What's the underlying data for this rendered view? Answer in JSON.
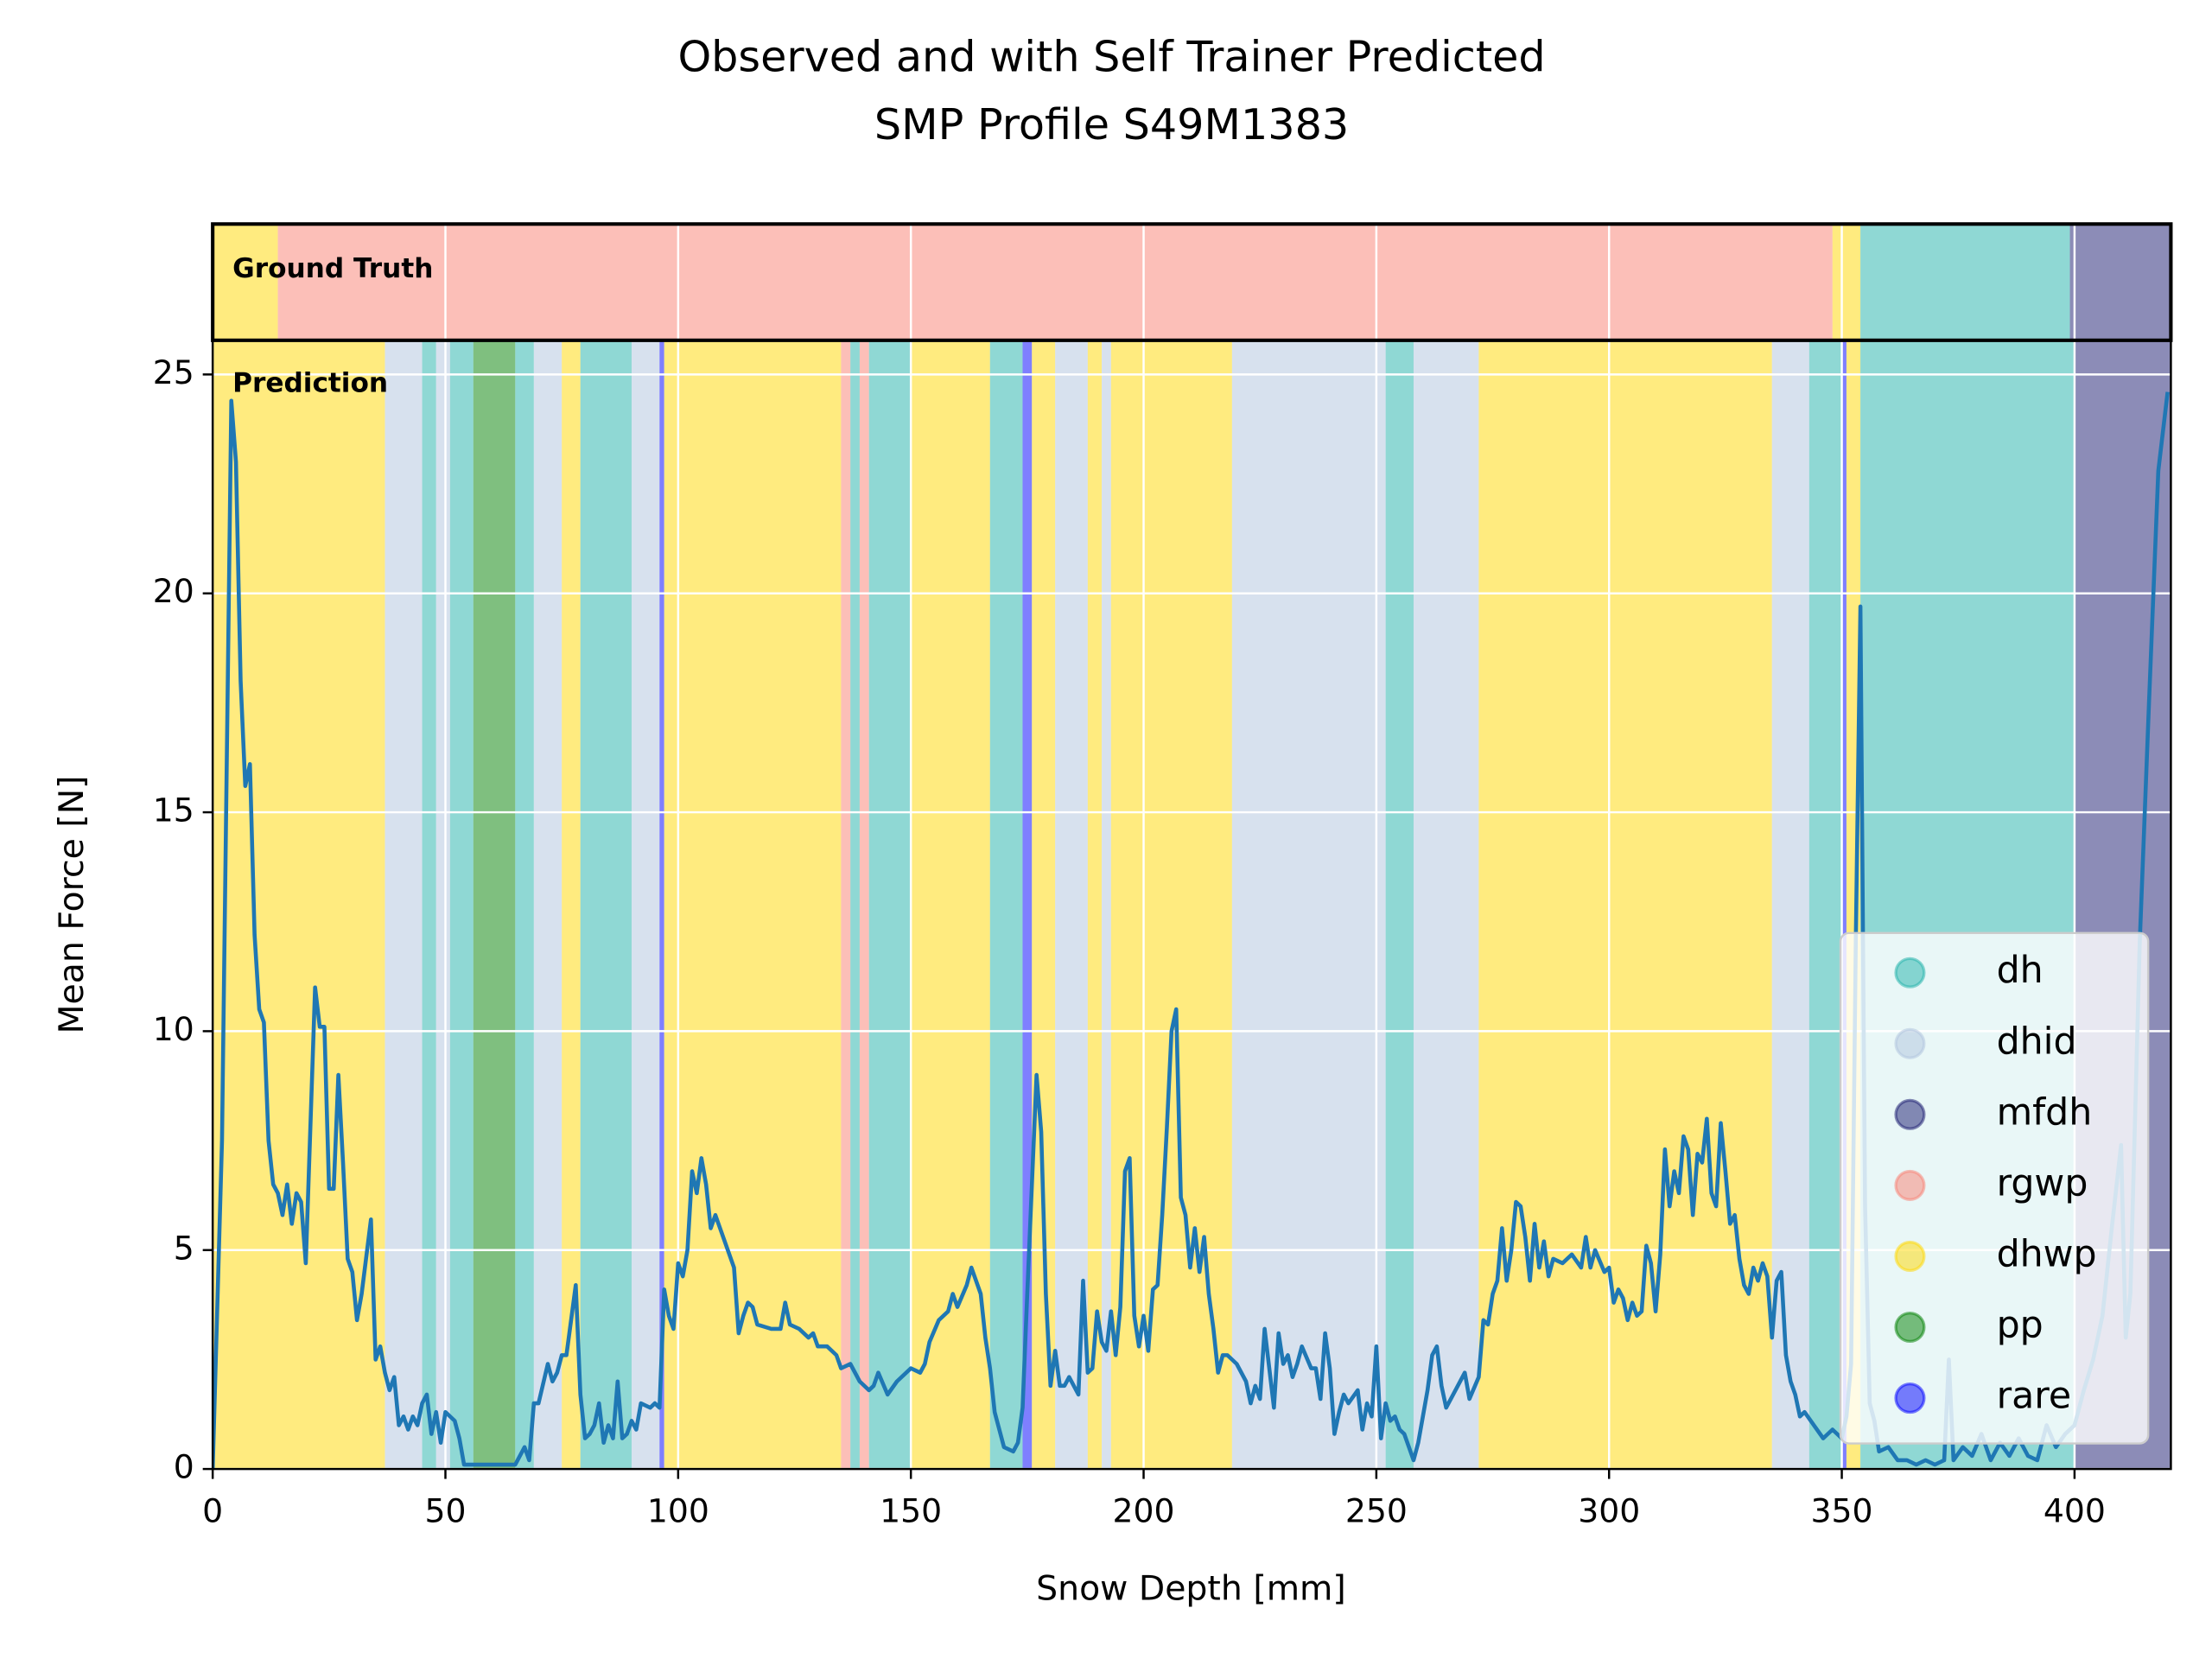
{
  "chart_data": {
    "type": "line",
    "title": [
      "Observed and with Self Trainer Predicted",
      "SMP Profile S49M1383"
    ],
    "x_label": "Snow Depth [mm]",
    "y_label": "Mean Force [N]",
    "xlim": [
      0,
      420.7
    ],
    "ylim": [
      0,
      25.78
    ],
    "xticks": [
      0,
      50,
      100,
      150,
      200,
      250,
      300,
      350,
      400
    ],
    "yticks": [
      0,
      5,
      10,
      15,
      20,
      25
    ],
    "grid": true,
    "legend": "lower right",
    "band_alpha": 0.5,
    "classes": [
      {
        "name": "dh",
        "color": "#20b2aa"
      },
      {
        "name": "dhid",
        "color": "#b0c4de"
      },
      {
        "name": "mfdh",
        "color": "#191970"
      },
      {
        "name": "rgwp",
        "color": "#fa8072"
      },
      {
        "name": "dhwp",
        "color": "#ffd700"
      },
      {
        "name": "pp",
        "color": "#008000"
      },
      {
        "name": "rare",
        "color": "#0000ff"
      }
    ],
    "ground_truth": {
      "label": "Ground Truth",
      "segments": [
        {
          "start": 0,
          "end": 14,
          "class": "dhwp"
        },
        {
          "start": 14,
          "end": 348,
          "class": "rgwp"
        },
        {
          "start": 348,
          "end": 354,
          "class": "dhwp"
        },
        {
          "start": 354,
          "end": 399,
          "class": "dh"
        },
        {
          "start": 399,
          "end": 420.7,
          "class": "mfdh"
        }
      ]
    },
    "prediction": {
      "label": "Prediction",
      "segments": [
        {
          "start": 0,
          "end": 37,
          "class": "dhwp"
        },
        {
          "start": 37,
          "end": 45,
          "class": "dhid"
        },
        {
          "start": 45,
          "end": 48,
          "class": "dh"
        },
        {
          "start": 48,
          "end": 51,
          "class": "dhid"
        },
        {
          "start": 51,
          "end": 56,
          "class": "dh"
        },
        {
          "start": 56,
          "end": 65,
          "class": "pp"
        },
        {
          "start": 65,
          "end": 69,
          "class": "dh"
        },
        {
          "start": 69,
          "end": 75,
          "class": "dhid"
        },
        {
          "start": 75,
          "end": 79,
          "class": "dhwp"
        },
        {
          "start": 79,
          "end": 90,
          "class": "dh"
        },
        {
          "start": 90,
          "end": 96,
          "class": "dhid"
        },
        {
          "start": 96,
          "end": 97,
          "class": "rare"
        },
        {
          "start": 97,
          "end": 135,
          "class": "dhwp"
        },
        {
          "start": 135,
          "end": 137,
          "class": "rgwp"
        },
        {
          "start": 137,
          "end": 139,
          "class": "dh"
        },
        {
          "start": 139,
          "end": 141,
          "class": "rgwp"
        },
        {
          "start": 141,
          "end": 150,
          "class": "dh"
        },
        {
          "start": 150,
          "end": 167,
          "class": "dhwp"
        },
        {
          "start": 167,
          "end": 174,
          "class": "dh"
        },
        {
          "start": 174,
          "end": 176,
          "class": "rare"
        },
        {
          "start": 176,
          "end": 181,
          "class": "dhwp"
        },
        {
          "start": 181,
          "end": 188,
          "class": "dhid"
        },
        {
          "start": 188,
          "end": 191,
          "class": "dhwp"
        },
        {
          "start": 191,
          "end": 193,
          "class": "dhid"
        },
        {
          "start": 193,
          "end": 219,
          "class": "dhwp"
        },
        {
          "start": 219,
          "end": 252,
          "class": "dhid"
        },
        {
          "start": 252,
          "end": 258,
          "class": "dh"
        },
        {
          "start": 258,
          "end": 272,
          "class": "dhid"
        },
        {
          "start": 272,
          "end": 335,
          "class": "dhwp"
        },
        {
          "start": 335,
          "end": 343,
          "class": "dhid"
        },
        {
          "start": 343,
          "end": 350,
          "class": "dh"
        },
        {
          "start": 350,
          "end": 351,
          "class": "rare"
        },
        {
          "start": 351,
          "end": 354,
          "class": "dhwp"
        },
        {
          "start": 354,
          "end": 400,
          "class": "dh"
        },
        {
          "start": 400,
          "end": 420.7,
          "class": "mfdh"
        }
      ]
    },
    "series": [
      {
        "color": "#1f77b4",
        "x": [
          0,
          2,
          4,
          5,
          6,
          7,
          8,
          9,
          10,
          11,
          12,
          13,
          14,
          15,
          16,
          17,
          18,
          19,
          20,
          22,
          23,
          24,
          25,
          26,
          27,
          28,
          29,
          30,
          31,
          32,
          34,
          35,
          36,
          37,
          38,
          39,
          40,
          41,
          42,
          43,
          44,
          45,
          46,
          47,
          48,
          49,
          50,
          52,
          53,
          54,
          56,
          60,
          65,
          67,
          68,
          69,
          70,
          72,
          73,
          74,
          75,
          76,
          78,
          79,
          80,
          81,
          82,
          83,
          84,
          85,
          86,
          87,
          88,
          89,
          90,
          91,
          92,
          94,
          95,
          96,
          97,
          98,
          99,
          100,
          101,
          102,
          103,
          104,
          105,
          106,
          107,
          108,
          110,
          112,
          113,
          114,
          115,
          116,
          117,
          120,
          122,
          123,
          124,
          126,
          128,
          129,
          130,
          132,
          134,
          135,
          137,
          139,
          141,
          142,
          143,
          145,
          147,
          150,
          152,
          153,
          154,
          156,
          158,
          159,
          160,
          162,
          163,
          165,
          166,
          167,
          168,
          170,
          172,
          173,
          174,
          175,
          176,
          177,
          178,
          179,
          180,
          181,
          182,
          183,
          184,
          186,
          187,
          188,
          189,
          190,
          191,
          192,
          193,
          194,
          195,
          196,
          197,
          198,
          199,
          200,
          201,
          202,
          203,
          204,
          205,
          206,
          207,
          208,
          209,
          210,
          211,
          212,
          213,
          214,
          215,
          216,
          217,
          218,
          220,
          221,
          222,
          223,
          224,
          225,
          226,
          227,
          228,
          229,
          230,
          231,
          232,
          233,
          234,
          236,
          237,
          238,
          239,
          240,
          241,
          242,
          243,
          244,
          246,
          247,
          248,
          249,
          250,
          251,
          252,
          253,
          254,
          255,
          256,
          257,
          258,
          259,
          260,
          261,
          262,
          263,
          264,
          265,
          267,
          269,
          270,
          272,
          273,
          274,
          275,
          276,
          277,
          278,
          279,
          280,
          281,
          282,
          283,
          284,
          285,
          286,
          287,
          288,
          290,
          292,
          294,
          295,
          296,
          297,
          299,
          300,
          301,
          302,
          303,
          304,
          305,
          306,
          307,
          308,
          309,
          310,
          311,
          312,
          313,
          314,
          315,
          316,
          317,
          318,
          319,
          320,
          321,
          322,
          323,
          324,
          325,
          326,
          327,
          328,
          329,
          330,
          331,
          332,
          333,
          334,
          335,
          336,
          337,
          338,
          339,
          340,
          341,
          342,
          344,
          346,
          348,
          350,
          351,
          352,
          353,
          354,
          355,
          356,
          357,
          358,
          360,
          362,
          364,
          366,
          368,
          370,
          372,
          373,
          374,
          376,
          378,
          380,
          382,
          384,
          386,
          388,
          390,
          392,
          394,
          396,
          398,
          400,
          402,
          404,
          406,
          408,
          410,
          411,
          412,
          414,
          416,
          418,
          420
        ],
        "values": [
          0,
          7.5,
          24.4,
          23,
          18,
          15.6,
          16.1,
          12.2,
          10.5,
          10.2,
          7.5,
          6.5,
          6.3,
          5.8,
          6.5,
          5.6,
          6.3,
          6.1,
          4.7,
          11,
          10.1,
          10.1,
          6.4,
          6.4,
          9,
          7,
          4.8,
          4.5,
          3.4,
          4,
          5.7,
          2.5,
          2.8,
          2.2,
          1.8,
          2.1,
          1,
          1.2,
          0.9,
          1.2,
          1,
          1.5,
          1.7,
          0.8,
          1.3,
          0.6,
          1.3,
          1.1,
          0.7,
          0.1,
          0.1,
          0.1,
          0.1,
          0.5,
          0.2,
          1.5,
          1.5,
          2.4,
          2,
          2.2,
          2.6,
          2.6,
          4.2,
          1.7,
          0.7,
          0.8,
          1,
          1.5,
          0.6,
          1,
          0.7,
          2,
          0.7,
          0.8,
          1.1,
          0.9,
          1.5,
          1.4,
          1.5,
          1.4,
          4.1,
          3.5,
          3.2,
          4.7,
          4.4,
          5,
          6.8,
          6.3,
          7.1,
          6.5,
          5.5,
          5.8,
          5.2,
          4.6,
          3.1,
          3.5,
          3.8,
          3.7,
          3.3,
          3.2,
          3.2,
          3.8,
          3.3,
          3.2,
          3,
          3.1,
          2.8,
          2.8,
          2.6,
          2.3,
          2.4,
          2,
          1.8,
          1.9,
          2.2,
          1.7,
          2,
          2.3,
          2.2,
          2.4,
          2.9,
          3.4,
          3.6,
          4,
          3.7,
          4.2,
          4.6,
          4,
          3,
          2.3,
          1.3,
          0.5,
          0.4,
          0.6,
          1.4,
          4,
          6.5,
          9,
          7.7,
          4,
          1.9,
          2.7,
          1.9,
          1.9,
          2.1,
          1.7,
          4.3,
          2.2,
          2.3,
          3.6,
          2.9,
          2.7,
          3.6,
          2.6,
          3.7,
          6.8,
          7.1,
          3.5,
          2.8,
          3.5,
          2.7,
          4.1,
          4.2,
          5.8,
          7.8,
          10,
          10.5,
          6.2,
          5.8,
          4.6,
          5.5,
          4.5,
          5.3,
          4,
          3.2,
          2.2,
          2.6,
          2.6,
          2.4,
          2.2,
          2,
          1.5,
          1.9,
          1.6,
          3.2,
          2.3,
          1.4,
          3.1,
          2.4,
          2.6,
          2.1,
          2.4,
          2.8,
          2.3,
          2.3,
          1.6,
          3.1,
          2.3,
          0.8,
          1.3,
          1.7,
          1.5,
          1.8,
          0.9,
          1.5,
          1.2,
          2.8,
          0.7,
          1.5,
          1.1,
          1.2,
          0.9,
          0.8,
          0.5,
          0.2,
          0.6,
          1.2,
          1.8,
          2.6,
          2.8,
          1.9,
          1.4,
          1.8,
          2.2,
          1.6,
          2.1,
          3.4,
          3.3,
          4,
          4.3,
          5.5,
          4.3,
          5,
          6.1,
          6,
          5.3,
          4.3,
          5.6,
          4.6,
          5.2,
          4.4,
          4.8,
          4.7,
          4.9,
          4.6,
          5.3,
          4.6,
          5,
          4.5,
          4.6,
          3.8,
          4.1,
          3.9,
          3.4,
          3.8,
          3.5,
          3.6,
          5.1,
          4.7,
          3.6,
          4.9,
          7.3,
          6,
          6.8,
          6.3,
          7.6,
          7.3,
          5.8,
          7.2,
          7,
          8,
          6.3,
          6,
          7.9,
          6.8,
          5.6,
          5.8,
          4.8,
          4.2,
          4,
          4.6,
          4.3,
          4.7,
          4.4,
          3,
          4.3,
          4.5,
          2.6,
          2,
          1.7,
          1.2,
          1.3,
          1,
          0.7,
          0.9,
          0.7,
          1.2,
          2.4,
          12,
          19.7,
          6,
          1.5,
          1.1,
          0.4,
          0.5,
          0.2,
          0.2,
          0.1,
          0.2,
          0.1,
          0.2,
          2.5,
          0.2,
          0.5,
          0.3,
          0.8,
          0.2,
          0.6,
          0.3,
          0.7,
          0.3,
          0.2,
          1,
          0.5,
          0.8,
          1,
          1.8,
          2.5,
          3.5,
          5.5,
          7.4,
          3,
          4,
          12,
          17.5,
          22.8,
          24.6
        ]
      }
    ]
  }
}
